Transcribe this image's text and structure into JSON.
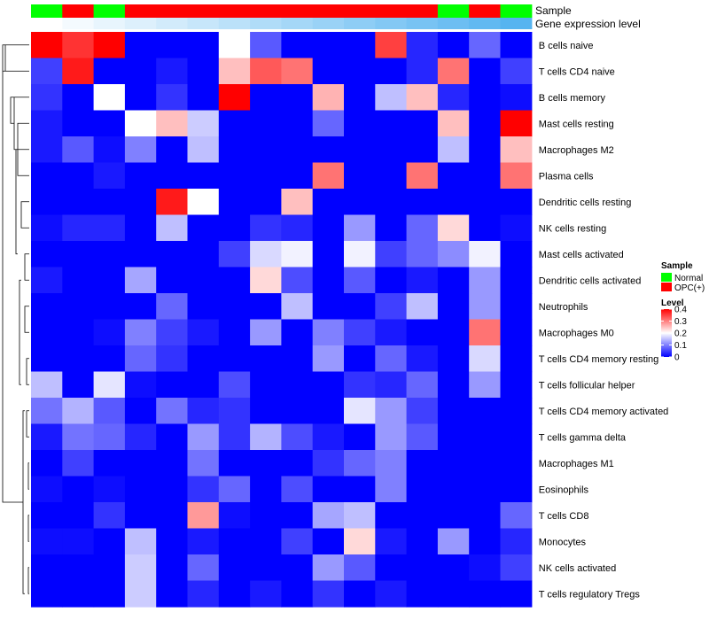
{
  "chart_data": {
    "type": "heatmap",
    "annotation_labels": {
      "sample": "Sample",
      "gene": "Gene expression level"
    },
    "rows": [
      "B cells naive",
      "T cells CD4 naive",
      "B cells memory",
      "Mast cells resting",
      "Macrophages M2",
      "Plasma cells",
      "Dendritic cells resting",
      "NK cells resting",
      "Mast cells activated",
      "Dendritic cells activated",
      "Neutrophils",
      "Macrophages M0",
      "T cells CD4 memory resting",
      "T cells follicular helper",
      "T cells CD4 memory activated",
      "T cells gamma delta",
      "Macrophages M1",
      "Eosinophils",
      "T cells CD8",
      "Monocytes",
      "NK cells activated",
      "T cells regulatory  Tregs"
    ],
    "sample_groups": [
      "Normal",
      "OPC(+)",
      "Normal",
      "OPC(+)",
      "OPC(+)",
      "OPC(+)",
      "OPC(+)",
      "OPC(+)",
      "OPC(+)",
      "OPC(+)",
      "OPC(+)",
      "OPC(+)",
      "OPC(+)",
      "Normal",
      "OPC(+)",
      "Normal"
    ],
    "gene_expression_level": [
      0.0,
      0.02,
      0.04,
      0.06,
      0.08,
      0.1,
      0.12,
      0.14,
      0.16,
      0.18,
      0.2,
      0.22,
      0.24,
      0.26,
      0.28,
      0.3
    ],
    "values": [
      [
        0.4,
        0.36,
        0.4,
        0.0,
        0.0,
        0.0,
        0.2,
        0.07,
        0.0,
        0.0,
        0.0,
        0.35,
        0.03,
        0.0,
        0.08,
        0.0
      ],
      [
        0.05,
        0.38,
        0.0,
        0.0,
        0.02,
        0.0,
        0.25,
        0.33,
        0.31,
        0.0,
        0.0,
        0.0,
        0.03,
        0.31,
        0.0,
        0.05
      ],
      [
        0.04,
        0.0,
        0.2,
        0.0,
        0.04,
        0.0,
        0.4,
        0.0,
        0.0,
        0.26,
        0.0,
        0.15,
        0.25,
        0.03,
        0.0,
        0.01
      ],
      [
        0.02,
        0.0,
        0.0,
        0.2,
        0.25,
        0.16,
        0.0,
        0.0,
        0.0,
        0.08,
        0.0,
        0.0,
        0.0,
        0.25,
        0.0,
        0.4
      ],
      [
        0.02,
        0.07,
        0.01,
        0.1,
        0.0,
        0.15,
        0.0,
        0.0,
        0.0,
        0.0,
        0.0,
        0.0,
        0.0,
        0.15,
        0.0,
        0.25
      ],
      [
        0.0,
        0.0,
        0.02,
        0.0,
        0.0,
        0.0,
        0.0,
        0.0,
        0.0,
        0.31,
        0.0,
        0.0,
        0.31,
        0.0,
        0.0,
        0.31
      ],
      [
        0.0,
        0.0,
        0.0,
        0.0,
        0.38,
        0.2,
        0.0,
        0.0,
        0.25,
        0.0,
        0.0,
        0.0,
        0.0,
        0.0,
        0.0,
        0.0
      ],
      [
        0.01,
        0.03,
        0.03,
        0.0,
        0.15,
        0.0,
        0.0,
        0.04,
        0.03,
        0.0,
        0.12,
        0.0,
        0.08,
        0.23,
        0.0,
        0.01
      ],
      [
        0.0,
        0.0,
        0.0,
        0.0,
        0.0,
        0.0,
        0.05,
        0.17,
        0.19,
        0.0,
        0.19,
        0.05,
        0.08,
        0.11,
        0.19,
        0.0
      ],
      [
        0.02,
        0.0,
        0.0,
        0.13,
        0.0,
        0.0,
        0.0,
        0.23,
        0.06,
        0.0,
        0.07,
        0.0,
        0.02,
        0.0,
        0.12,
        0.0
      ],
      [
        0.0,
        0.0,
        0.0,
        0.0,
        0.08,
        0.0,
        0.0,
        0.0,
        0.15,
        0.0,
        0.0,
        0.05,
        0.15,
        0.0,
        0.12,
        0.0
      ],
      [
        0.0,
        0.0,
        0.01,
        0.1,
        0.05,
        0.02,
        0.0,
        0.12,
        0.0,
        0.1,
        0.05,
        0.02,
        0.0,
        0.0,
        0.31,
        0.0
      ],
      [
        0.0,
        0.0,
        0.0,
        0.08,
        0.04,
        0.0,
        0.0,
        0.0,
        0.0,
        0.12,
        0.0,
        0.08,
        0.02,
        0.0,
        0.17,
        0.0
      ],
      [
        0.15,
        0.0,
        0.18,
        0.01,
        0.0,
        0.0,
        0.06,
        0.0,
        0.0,
        0.0,
        0.04,
        0.03,
        0.08,
        0.0,
        0.12,
        0.0
      ],
      [
        0.09,
        0.14,
        0.07,
        0.0,
        0.09,
        0.03,
        0.04,
        0.0,
        0.0,
        0.0,
        0.18,
        0.12,
        0.05,
        0.0,
        0.0,
        0.0
      ],
      [
        0.02,
        0.09,
        0.08,
        0.03,
        0.0,
        0.12,
        0.04,
        0.14,
        0.06,
        0.02,
        0.0,
        0.12,
        0.07,
        0.0,
        0.0,
        0.0
      ],
      [
        0.0,
        0.05,
        0.0,
        0.0,
        0.0,
        0.09,
        0.0,
        0.0,
        0.0,
        0.04,
        0.08,
        0.1,
        0.0,
        0.0,
        0.0,
        0.0
      ],
      [
        0.01,
        0.0,
        0.01,
        0.0,
        0.0,
        0.04,
        0.08,
        0.0,
        0.06,
        0.0,
        0.0,
        0.1,
        0.0,
        0.0,
        0.0,
        0.0
      ],
      [
        0.0,
        0.0,
        0.04,
        0.0,
        0.0,
        0.28,
        0.01,
        0.0,
        0.0,
        0.13,
        0.15,
        0.0,
        0.0,
        0.0,
        0.0,
        0.08
      ],
      [
        0.01,
        0.01,
        0.0,
        0.15,
        0.0,
        0.02,
        0.0,
        0.0,
        0.05,
        0.0,
        0.23,
        0.02,
        0.0,
        0.12,
        0.0,
        0.03
      ],
      [
        0.0,
        0.0,
        0.0,
        0.16,
        0.0,
        0.08,
        0.0,
        0.0,
        0.0,
        0.12,
        0.07,
        0.0,
        0.0,
        0.0,
        0.01,
        0.05
      ],
      [
        0.0,
        0.0,
        0.0,
        0.16,
        0.0,
        0.03,
        0.0,
        0.02,
        0.0,
        0.04,
        0.0,
        0.02,
        0.0,
        0.0,
        0.0,
        0.0
      ]
    ],
    "color_scale": {
      "min": 0,
      "max": 0.4,
      "low": "#0000ff",
      "mid": "#ffffff",
      "high": "#ff0000"
    },
    "group_colors": {
      "Normal": "#00ff00",
      "OPC(+)": "#ff0000"
    },
    "gene_colors": {
      "low": "#ffffff",
      "high": "#56b4f0"
    },
    "legend": {
      "sample_title": "Sample",
      "sample_entries": [
        "Normal",
        "OPC(+)"
      ],
      "level_title": "Level",
      "level_ticks": [
        "0.4",
        "0.3",
        "0.2",
        "0.1",
        "0"
      ],
      "level_values": [
        0.4,
        0.3,
        0.2,
        0.1,
        0
      ]
    },
    "legend_position": "right"
  }
}
